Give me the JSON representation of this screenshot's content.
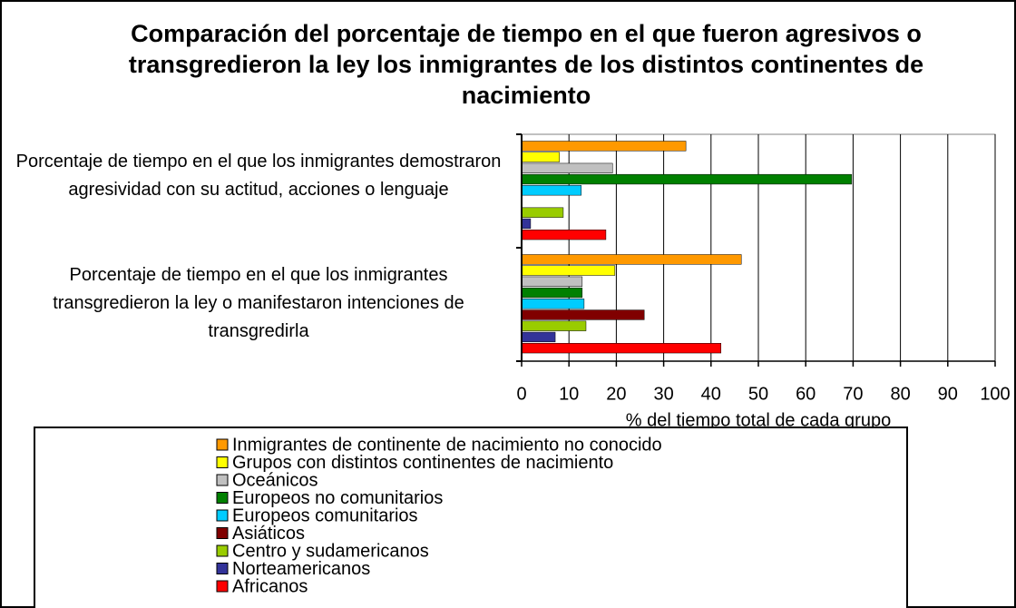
{
  "chart_data": {
    "type": "barh",
    "title": "Comparación del porcentaje de tiempo en el que fueron agresivos o transgredieron la ley los inmigrantes de los distintos continentes de nacimiento",
    "x_label": "% del tiempo total de cada grupo",
    "categories": [
      "Porcentaje de tiempo en el que los inmigrantes demostraron agresividad con su actitud, acciones o lenguaje",
      "Porcentaje de tiempo en el que los inmigrantes transgredieron la ley o manifestaron intenciones de transgredirla"
    ],
    "series": [
      {
        "name": "Inmigrantes de continente de nacimiento no conocido",
        "color": "#ff9900",
        "values": [
          34.7,
          46.4
        ]
      },
      {
        "name": "Grupos con distintos continentes de nacimiento",
        "color": "#ffff00",
        "values": [
          8.0,
          19.7
        ]
      },
      {
        "name": "Oceánicos",
        "color": "#c0c0c0",
        "values": [
          19.2,
          12.8
        ]
      },
      {
        "name": "Europeos no comunitarios",
        "color": "#008000",
        "values": [
          69.7,
          12.8
        ]
      },
      {
        "name": "Europeos comunitarios",
        "color": "#00ccff",
        "values": [
          12.6,
          13.2
        ]
      },
      {
        "name": "Asiáticos",
        "color": "#800000",
        "values": [
          0,
          25.9
        ]
      },
      {
        "name": "Centro y sudamericanos",
        "color": "#99cc00",
        "values": [
          8.8,
          13.6
        ]
      },
      {
        "name": "Norteamericanos",
        "color": "#333399",
        "values": [
          1.9,
          7.1
        ]
      },
      {
        "name": "Africanos",
        "color": "#ff0000",
        "values": [
          17.8,
          42.1
        ]
      }
    ],
    "xlim": [
      0,
      100
    ],
    "xticks": [
      0,
      10,
      20,
      30,
      40,
      50,
      60,
      70,
      80,
      90,
      100
    ],
    "grid": true
  }
}
